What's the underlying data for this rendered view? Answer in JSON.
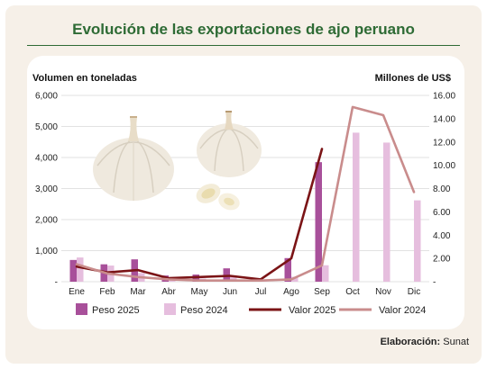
{
  "title": "Evolución de las exportaciones de ajo peruano",
  "credit": {
    "label": "Elaboración:",
    "value": "Sunat"
  },
  "colors": {
    "title_green": "#2e6b35",
    "peso2025": "#a8509a",
    "peso2024": "#e6bede",
    "valor2025": "#7b1416",
    "valor2024": "#c98c8c",
    "grid": "#d9d9d9"
  },
  "illustration": "garlic-bulbs-and-cloves",
  "chart_data": {
    "type": "bar",
    "categories": [
      "Ene",
      "Feb",
      "Mar",
      "Abr",
      "May",
      "Jun",
      "Jul",
      "Ago",
      "Sep",
      "Oct",
      "Nov",
      "Dic"
    ],
    "ylabel_left": "Volumen en toneladas",
    "ylabel_right": "Millones de US$",
    "ylim_left": [
      0,
      6000
    ],
    "ylim_right": [
      0,
      16
    ],
    "yticks_left": [
      "-",
      "1,000",
      "2,000",
      "3,000",
      "4,000",
      "5,000",
      "6,000"
    ],
    "yticks_right": [
      "-",
      "2.00",
      "4.00",
      "6.00",
      "8.00",
      "10.00",
      "12.00",
      "14.00",
      "16.00"
    ],
    "grid": true,
    "legend_position": "bottom",
    "bar_series": [
      {
        "name": "Peso 2025",
        "values": [
          700,
          560,
          720,
          200,
          230,
          430,
          0,
          760,
          3850,
          null,
          null,
          null
        ]
      },
      {
        "name": "Peso 2024",
        "values": [
          780,
          520,
          280,
          130,
          100,
          170,
          70,
          160,
          530,
          4800,
          4480,
          2620
        ]
      }
    ],
    "line_series": [
      {
        "name": "Valor 2025",
        "axis": "right",
        "values": [
          1.3,
          0.8,
          1.0,
          0.3,
          0.4,
          0.5,
          0.2,
          2.0,
          11.4,
          null,
          null,
          null
        ]
      },
      {
        "name": "Valor 2024",
        "axis": "right",
        "values": [
          1.5,
          0.7,
          0.4,
          0.2,
          0.1,
          0.1,
          0.1,
          0.2,
          1.4,
          15.0,
          14.3,
          7.7
        ]
      }
    ]
  }
}
